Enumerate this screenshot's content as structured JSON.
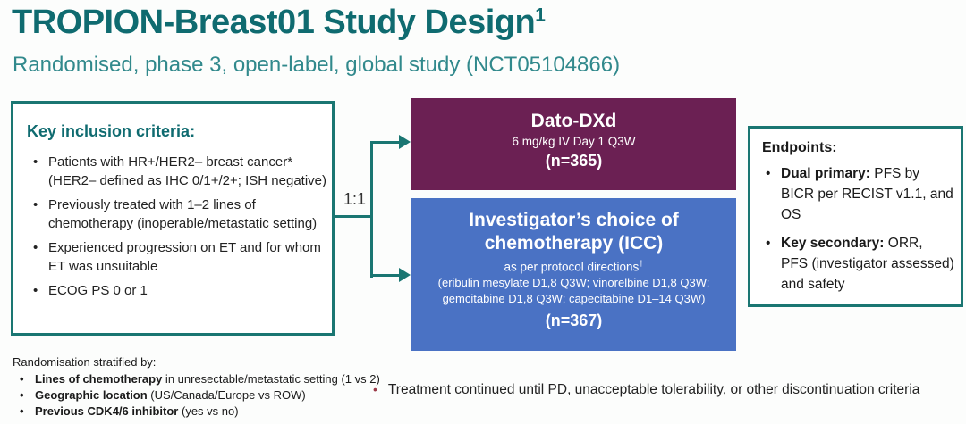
{
  "header": {
    "title": "TROPION-Breast01 Study Design",
    "title_sup": "1",
    "subtitle": "Randomised, phase 3, open-label, global study (NCT05104866)"
  },
  "inclusion": {
    "heading": "Key inclusion criteria:",
    "bullets": [
      "Patients with HR+/HER2– breast cancer*\n(HER2– defined as IHC 0/1+/2+; ISH negative)",
      "Previously treated with 1–2 lines of\nchemotherapy (inoperable/metastatic setting)",
      "Experienced progression on ET and for whom\nET was unsuitable",
      "ECOG PS 0 or 1"
    ]
  },
  "randomisation": {
    "ratio_label": "1:1"
  },
  "dato_arm": {
    "title": "Dato-DXd",
    "dose": "6 mg/kg IV Day 1 Q3W",
    "n": "(n=365)"
  },
  "icc_arm": {
    "title": "Investigator’s choice of\nchemotherapy (ICC)",
    "subtitle": "as per protocol directions",
    "subtitle_sup": "†",
    "details": "(eribulin mesylate D1,8 Q3W; vinorelbine D1,8 Q3W;\ngemcitabine D1,8 Q3W; capecitabine D1–14 Q3W)",
    "n": "(n=367)"
  },
  "endpoints": {
    "heading": "Endpoints:",
    "bullets": [
      {
        "lead": "Dual primary:",
        "rest": " PFS by\nBICR per RECIST v1.1, and\nOS"
      },
      {
        "lead": "Key secondary:",
        "rest": " ORR,\nPFS (investigator assessed)\nand safety"
      }
    ]
  },
  "stratification": {
    "heading": "Randomisation stratified by:",
    "bullets": [
      {
        "lead": "Lines of chemotherapy",
        "rest": " in unresectable/metastatic setting (1 vs 2)"
      },
      {
        "lead": "Geographic location",
        "rest": " (US/Canada/Europe vs ROW)"
      },
      {
        "lead": "Previous CDK4/6 inhibitor",
        "rest": " (yes vs no)"
      }
    ]
  },
  "treatment_note": "Treatment continued until PD, unacceptable tolerability, or other discontinuation criteria",
  "colors": {
    "title_teal": "#0f6b70",
    "subtitle_teal": "#31898c",
    "border_teal": "#1a7672",
    "dato_maroon": "#6b2053",
    "icc_blue": "#4a72c4",
    "note_bullet": "#9b3a47"
  }
}
